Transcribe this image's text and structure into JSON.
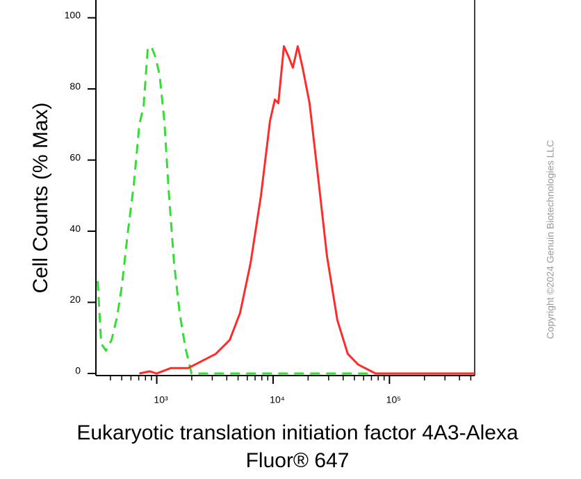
{
  "chart_data": {
    "type": "line",
    "x_label": [
      "Eukaryotic translation initiation factor 4A3-Alexa",
      "Fluor® 647"
    ],
    "y_label": "Cell Counts (% Max)",
    "annotation": "Copyright ©2024 Genuin Biotechnologies LLC",
    "x_scale": "log",
    "xlim": [
      300,
      540000
    ],
    "ylim": [
      0,
      105
    ],
    "xticks": [
      {
        "value": 1000,
        "label": "10³"
      },
      {
        "value": 10000,
        "label": "10⁴"
      },
      {
        "value": 100000,
        "label": "10⁵"
      }
    ],
    "xminor_ticks": [
      400,
      500,
      600,
      700,
      800,
      900,
      2000,
      3000,
      4000,
      5000,
      6000,
      7000,
      8000,
      9000,
      20000,
      30000,
      40000,
      50000,
      60000,
      70000,
      80000,
      90000,
      200000,
      300000,
      400000,
      500000
    ],
    "yticks": [
      0,
      20,
      40,
      60,
      80,
      100
    ],
    "series": [
      {
        "color": "#33dd33",
        "dashed": true,
        "x": [
          311,
          333,
          366,
          409,
          457,
          503,
          561,
          635,
          709,
          771,
          836,
          896,
          973,
          1057,
          1163,
          1263,
          1409,
          1574,
          1758,
          1990,
          540000
        ],
        "values": [
          26,
          8.4,
          6.4,
          9.4,
          16,
          25,
          39,
          53,
          70,
          75,
          91,
          92,
          89,
          84,
          71,
          52,
          31,
          17,
          7.4,
          0,
          0
        ]
      },
      {
        "color": "#ff2a2a",
        "dashed": false,
        "x": [
          709,
          871,
          1000,
          1316,
          1856,
          2445,
          3214,
          4236,
          5200,
          6397,
          7870,
          9400,
          10350,
          11090,
          12380,
          13620,
          14790,
          16290,
          17930,
          20570,
          24600,
          29030,
          35670,
          43850,
          53830,
          76000,
          540000
        ],
        "values": [
          0,
          0.6,
          0,
          1.5,
          1.5,
          3.5,
          5.5,
          9.4,
          17,
          31,
          50,
          71,
          77,
          76,
          92,
          89,
          86,
          92,
          86,
          76,
          54,
          33,
          15,
          5.5,
          2.5,
          0,
          0
        ]
      }
    ]
  }
}
